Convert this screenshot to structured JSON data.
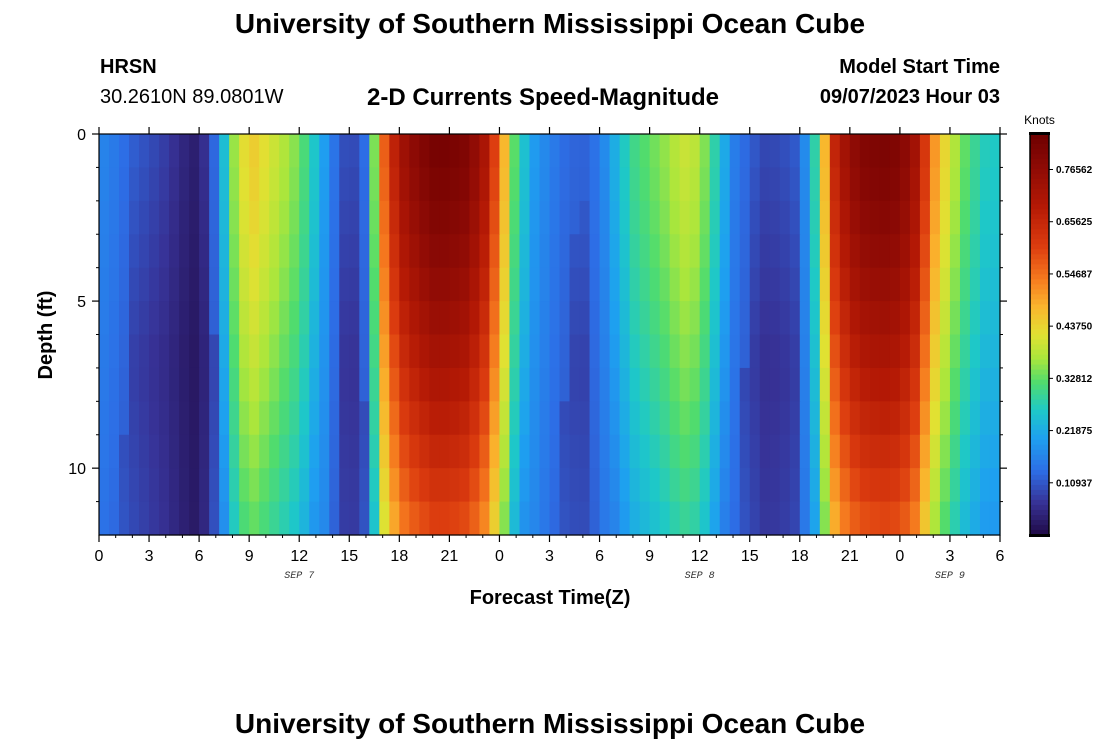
{
  "header": {
    "title": "University of Southern Mississippi Ocean Cube",
    "station": "HRSN",
    "coordinates": "30.2610N  89.0801W",
    "subtitle": "2-D Currents Speed-Magnitude",
    "model_start_label": "Model Start Time",
    "model_start_value": "09/07/2023 Hour 03"
  },
  "footer": {
    "title": "University of Southern Mississippi Ocean Cube"
  },
  "chart_data": {
    "type": "heatmap",
    "title": "2-D Currents Speed-Magnitude",
    "xlabel": "Forecast Time(Z)",
    "ylabel": "Depth (ft)",
    "x_range_hours": [
      0,
      54
    ],
    "y_range_ft": [
      0,
      12
    ],
    "x_ticks": [
      {
        "hour": 0,
        "label": "0"
      },
      {
        "hour": 3,
        "label": "3"
      },
      {
        "hour": 6,
        "label": "6"
      },
      {
        "hour": 9,
        "label": "9"
      },
      {
        "hour": 12,
        "label": "12"
      },
      {
        "hour": 15,
        "label": "15"
      },
      {
        "hour": 18,
        "label": "18"
      },
      {
        "hour": 21,
        "label": "21"
      },
      {
        "hour": 24,
        "label": "0"
      },
      {
        "hour": 27,
        "label": "3"
      },
      {
        "hour": 30,
        "label": "6"
      },
      {
        "hour": 33,
        "label": "9"
      },
      {
        "hour": 36,
        "label": "12"
      },
      {
        "hour": 39,
        "label": "15"
      },
      {
        "hour": 42,
        "label": "18"
      },
      {
        "hour": 45,
        "label": "21"
      },
      {
        "hour": 48,
        "label": "0"
      },
      {
        "hour": 51,
        "label": "3"
      },
      {
        "hour": 54,
        "label": "6"
      }
    ],
    "date_labels": [
      {
        "hour": 12,
        "label": "SEP 7"
      },
      {
        "hour": 36,
        "label": "SEP 8"
      },
      {
        "hour": 51,
        "label": "SEP 9"
      }
    ],
    "y_ticks": [
      {
        "depth": 0,
        "label": "0"
      },
      {
        "depth": 5,
        "label": "5"
      },
      {
        "depth": 10,
        "label": "10"
      }
    ],
    "colorbar": {
      "units": "Knots",
      "min": 0.0,
      "max": 0.84,
      "labels": [
        "0.76562",
        "0.65625",
        "0.54687",
        "0.43750",
        "0.32812",
        "0.21875",
        "0.10937"
      ]
    },
    "speed_profile_by_hour": [
      [
        0,
        0.17
      ],
      [
        1,
        0.15
      ],
      [
        2,
        0.12
      ],
      [
        3,
        0.1
      ],
      [
        4,
        0.08
      ],
      [
        5,
        0.05
      ],
      [
        6,
        0.03
      ],
      [
        7,
        0.14
      ],
      [
        8,
        0.35
      ],
      [
        9,
        0.46
      ],
      [
        10,
        0.42
      ],
      [
        11,
        0.38
      ],
      [
        12,
        0.34
      ],
      [
        13,
        0.25
      ],
      [
        14,
        0.15
      ],
      [
        15,
        0.08
      ],
      [
        16,
        0.14
      ],
      [
        17,
        0.55
      ],
      [
        18,
        0.72
      ],
      [
        19,
        0.78
      ],
      [
        20,
        0.82
      ],
      [
        21,
        0.82
      ],
      [
        22,
        0.8
      ],
      [
        23,
        0.73
      ],
      [
        24,
        0.55
      ],
      [
        25,
        0.3
      ],
      [
        26,
        0.2
      ],
      [
        27,
        0.16
      ],
      [
        28,
        0.13
      ],
      [
        29,
        0.12
      ],
      [
        30,
        0.15
      ],
      [
        31,
        0.23
      ],
      [
        32,
        0.3
      ],
      [
        33,
        0.33
      ],
      [
        34,
        0.36
      ],
      [
        35,
        0.4
      ],
      [
        36,
        0.38
      ],
      [
        37,
        0.27
      ],
      [
        38,
        0.16
      ],
      [
        39,
        0.12
      ],
      [
        40,
        0.09
      ],
      [
        41,
        0.1
      ],
      [
        42,
        0.12
      ],
      [
        43,
        0.3
      ],
      [
        44,
        0.65
      ],
      [
        45,
        0.76
      ],
      [
        46,
        0.8
      ],
      [
        47,
        0.81
      ],
      [
        48,
        0.8
      ],
      [
        49,
        0.72
      ],
      [
        50,
        0.52
      ],
      [
        51,
        0.4
      ],
      [
        52,
        0.32
      ],
      [
        53,
        0.27
      ],
      [
        54,
        0.26
      ]
    ]
  }
}
